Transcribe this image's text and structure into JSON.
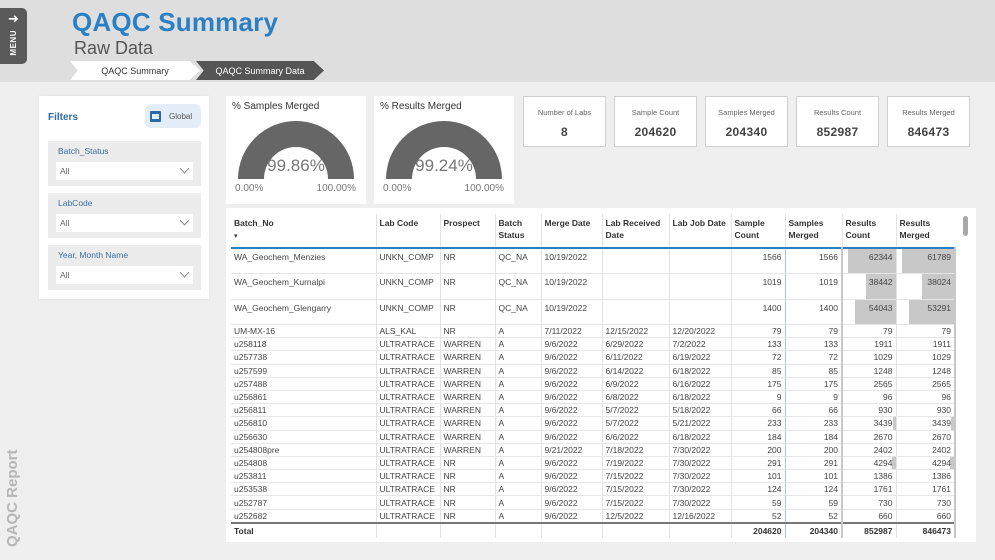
{
  "menu": {
    "label": "MENU",
    "icon": "arrow-right-icon"
  },
  "header": {
    "title": "QAQC Summary",
    "subtitle": "Raw Data"
  },
  "breadcrumbs": [
    {
      "label": "QAQC Summary",
      "active": false
    },
    {
      "label": "QAQC Summary Data",
      "active": true
    }
  ],
  "side_label": "QAQC Report",
  "filters": {
    "title": "Filters",
    "global_button": "Global",
    "slicers": [
      {
        "label": "Batch_Status",
        "value": "All"
      },
      {
        "label": "LabCode",
        "value": "All"
      },
      {
        "label": "Year, Month Name",
        "value": "All"
      }
    ]
  },
  "gauges": [
    {
      "title": "% Samples Merged",
      "value": "99.86%",
      "min": "0.00%",
      "max": "100.00%",
      "pct": 99.86
    },
    {
      "title": "% Results Merged",
      "value": "99.24%",
      "min": "0.00%",
      "max": "100.00%",
      "pct": 99.24
    }
  ],
  "kpis": [
    {
      "label": "Number of Labs",
      "value": "8"
    },
    {
      "label": "Sample Count",
      "value": "204620"
    },
    {
      "label": "Samples Merged",
      "value": "204340"
    },
    {
      "label": "Results Count",
      "value": "852987"
    },
    {
      "label": "Results Merged",
      "value": "846473"
    }
  ],
  "table": {
    "columns": [
      "Batch_No",
      "Lab Code",
      "Prospect",
      "Batch Status",
      "Merge Date",
      "Lab Received Date",
      "Lab Job Date",
      "Sample Count",
      "Samples Merged",
      "Results Count",
      "Results Merged"
    ],
    "rows": [
      [
        "WA_Geochem_Menzies",
        "UNKN_COMP",
        "NR",
        "QC_NA",
        "10/19/2022",
        "",
        "",
        "1566",
        "1566",
        "62344",
        "61789"
      ],
      [
        "WA_Geochem_Kurnalpi",
        "UNKN_COMP",
        "NR",
        "QC_NA",
        "10/19/2022",
        "",
        "",
        "1019",
        "1019",
        "38442",
        "38024"
      ],
      [
        "WA_Geochem_Glengarry",
        "UNKN_COMP",
        "NR",
        "QC_NA",
        "10/19/2022",
        "",
        "",
        "1400",
        "1400",
        "54043",
        "53291"
      ],
      [
        "UM-MX-16",
        "ALS_KAL",
        "NR",
        "A",
        "7/11/2022",
        "12/15/2022",
        "12/20/2022",
        "79",
        "79",
        "79",
        "79"
      ],
      [
        "u258118",
        "ULTRATRACE",
        "WARREN",
        "A",
        "9/6/2022",
        "6/29/2022",
        "7/2/2022",
        "133",
        "133",
        "1911",
        "1911"
      ],
      [
        "u257738",
        "ULTRATRACE",
        "WARREN",
        "A",
        "9/6/2022",
        "6/11/2022",
        "6/19/2022",
        "72",
        "72",
        "1029",
        "1029"
      ],
      [
        "u257599",
        "ULTRATRACE",
        "WARREN",
        "A",
        "9/6/2022",
        "6/14/2022",
        "6/18/2022",
        "85",
        "85",
        "1248",
        "1248"
      ],
      [
        "u257488",
        "ULTRATRACE",
        "WARREN",
        "A",
        "9/6/2022",
        "6/9/2022",
        "6/16/2022",
        "175",
        "175",
        "2565",
        "2565"
      ],
      [
        "u256861",
        "ULTRATRACE",
        "WARREN",
        "A",
        "9/6/2022",
        "6/8/2022",
        "6/18/2022",
        "9",
        "9",
        "96",
        "96"
      ],
      [
        "u256811",
        "ULTRATRACE",
        "WARREN",
        "A",
        "9/6/2022",
        "5/7/2022",
        "5/18/2022",
        "66",
        "66",
        "930",
        "930"
      ],
      [
        "u256810",
        "ULTRATRACE",
        "WARREN",
        "A",
        "9/6/2022",
        "5/7/2022",
        "5/21/2022",
        "233",
        "233",
        "3439",
        "3439"
      ],
      [
        "u256630",
        "ULTRATRACE",
        "WARREN",
        "A",
        "9/6/2022",
        "6/6/2022",
        "6/18/2022",
        "184",
        "184",
        "2670",
        "2670"
      ],
      [
        "u254808pre",
        "ULTRATRACE",
        "WARREN",
        "A",
        "9/21/2022",
        "7/18/2022",
        "7/30/2022",
        "200",
        "200",
        "2402",
        "2402"
      ],
      [
        "u254808",
        "ULTRATRACE",
        "NR",
        "A",
        "9/6/2022",
        "7/19/2022",
        "7/30/2022",
        "291",
        "291",
        "4294",
        "4294"
      ],
      [
        "u253811",
        "ULTRATRACE",
        "NR",
        "A",
        "9/6/2022",
        "7/15/2022",
        "7/30/2022",
        "101",
        "101",
        "1386",
        "1386"
      ],
      [
        "u253538",
        "ULTRATRACE",
        "NR",
        "A",
        "9/6/2022",
        "7/15/2022",
        "7/30/2022",
        "124",
        "124",
        "1761",
        "1761"
      ],
      [
        "u252787",
        "ULTRATRACE",
        "NR",
        "A",
        "9/6/2022",
        "7/15/2022",
        "7/30/2022",
        "59",
        "59",
        "730",
        "730"
      ],
      [
        "u252682",
        "ULTRATRACE",
        "NR",
        "A",
        "9/6/2022",
        "12/5/2022",
        "12/16/2022",
        "52",
        "52",
        "660",
        "660"
      ]
    ],
    "total": [
      "Total",
      "",
      "",
      "",
      "",
      "",
      "",
      "204620",
      "204340",
      "852987",
      "846473"
    ]
  },
  "colors": {
    "title_blue": "#2b7fc4",
    "gauge_fill": "#666666",
    "data_bar": "#c8c8c8"
  }
}
